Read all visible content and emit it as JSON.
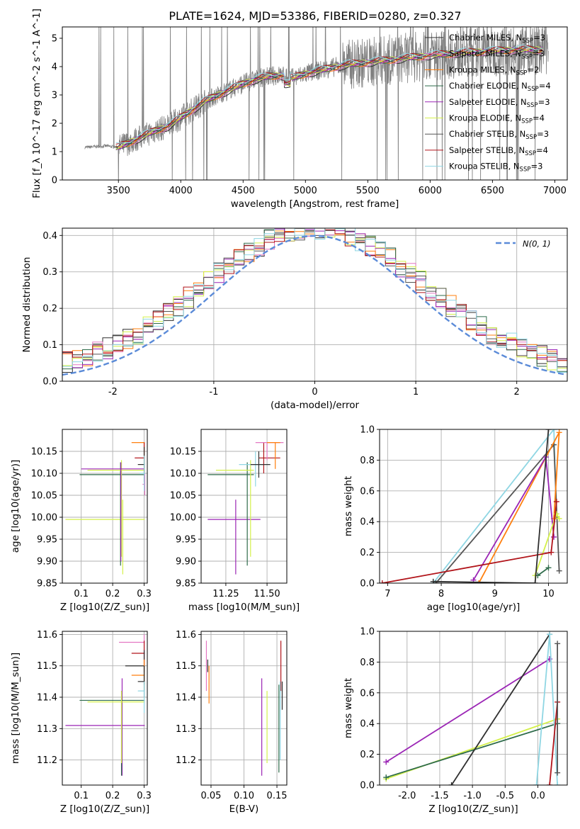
{
  "figure": {
    "title": "PLATE=1624, MJD=53386, FIBERID=0280, z=0.327"
  },
  "colors": {
    "data": "#808080",
    "fit": [
      "#2f2f2f",
      "#e377c2",
      "#ff7f0e",
      "#2e6b4a",
      "#9b25b5",
      "#d4f04a",
      "#555555",
      "#b1141a",
      "#8fd6e3"
    ],
    "gauss": "#5b8bd8",
    "grid": "#b0b0b0"
  },
  "chart_data": [
    {
      "id": "spectrum",
      "type": "line",
      "xlabel": "wavelength [Angstrom, rest frame]",
      "ylabel": "Flux [f_λ 10^-17 erg cm^-2 s^-1 A^-1]",
      "xlim": [
        3050,
        7100
      ],
      "ylim": [
        0,
        5.4
      ],
      "xticks": [
        3500,
        4000,
        4500,
        5000,
        5500,
        6000,
        6500,
        7000
      ],
      "yticks": [
        0,
        1,
        2,
        3,
        4,
        5
      ],
      "grid": false,
      "legend_placement": "top-right",
      "legend": [
        {
          "label": "Chabrier MILES, N",
          "sub": "SSP",
          "suffix": "=3"
        },
        {
          "label": "Salpeter MILES, N",
          "sub": "SSP",
          "suffix": "=3"
        },
        {
          "label": "Kroupa MILES, N",
          "sub": "SSP",
          "suffix": "=2"
        },
        {
          "label": "Chabrier ELODIE, N",
          "sub": "SSP",
          "suffix": "=4"
        },
        {
          "label": "Salpeter ELODIE, N",
          "sub": "SSP",
          "suffix": "=3"
        },
        {
          "label": "Kroupa ELODIE, N",
          "sub": "SSP",
          "suffix": "=4"
        },
        {
          "label": "Chabrier STELIB, N",
          "sub": "SSP",
          "suffix": "=3"
        },
        {
          "label": "Salpeter STELIB, N",
          "sub": "SSP",
          "suffix": "=4"
        },
        {
          "label": "Kroupa STELIB, N",
          "sub": "SSP",
          "suffix": "=3"
        }
      ],
      "continuum": [
        [
          3230,
          1.15
        ],
        [
          3400,
          1.2
        ],
        [
          3500,
          1.15
        ],
        [
          3600,
          1.35
        ],
        [
          3700,
          1.55
        ],
        [
          3800,
          1.75
        ],
        [
          3900,
          1.9
        ],
        [
          4000,
          2.2
        ],
        [
          4100,
          2.5
        ],
        [
          4200,
          2.8
        ],
        [
          4300,
          3.0
        ],
        [
          4400,
          3.2
        ],
        [
          4500,
          3.4
        ],
        [
          4600,
          3.55
        ],
        [
          4700,
          3.65
        ],
        [
          4800,
          3.7
        ],
        [
          4900,
          3.6
        ],
        [
          5000,
          3.75
        ],
        [
          5100,
          3.85
        ],
        [
          5200,
          3.95
        ],
        [
          5300,
          4.05
        ],
        [
          5500,
          4.15
        ],
        [
          5700,
          4.25
        ],
        [
          6000,
          4.4
        ],
        [
          6300,
          4.5
        ],
        [
          6500,
          4.55
        ],
        [
          6700,
          4.6
        ],
        [
          6900,
          4.6
        ]
      ]
    },
    {
      "id": "residuals",
      "type": "line",
      "xlabel": "(data-model)/error",
      "ylabel": "Normed distribution",
      "xlim": [
        -2.5,
        2.5
      ],
      "ylim": [
        0,
        0.42
      ],
      "xticks": [
        -2,
        -1,
        0,
        1,
        2
      ],
      "yticks": [
        0.0,
        0.1,
        0.2,
        0.3,
        0.4
      ],
      "grid": true,
      "legend_placement": "top-right",
      "gauss_label": "N(0, 1)",
      "bin_width": 0.1
    },
    {
      "id": "age_vs_Z",
      "type": "scatter",
      "xlabel": "Z [log10(Z/Z_sun)]",
      "ylabel": "age  [log10(age/yr)]",
      "xlim": [
        0.04,
        0.31
      ],
      "ylim": [
        9.85,
        10.2
      ],
      "xticks": [
        0.1,
        0.2,
        0.3
      ],
      "yticks": [
        9.85,
        9.9,
        9.95,
        10.0,
        10.05,
        10.1,
        10.15
      ],
      "grid": true,
      "points": [
        {
          "x": 0.232,
          "y": 9.995,
          "xe": [
            0.05,
            0.302
          ],
          "ye": [
            9.87,
            10.04
          ],
          "c": 5
        },
        {
          "x": 0.225,
          "y": 10.097,
          "xe": [
            0.095,
            0.302
          ],
          "ye": [
            9.89,
            10.125
          ],
          "c": 3
        },
        {
          "x": 0.228,
          "y": 10.107,
          "xe": [
            0.12,
            0.302
          ],
          "ye": [
            9.91,
            10.13
          ],
          "c": 5
        },
        {
          "x": 0.226,
          "y": 10.11,
          "xe": [
            0.1,
            0.3
          ],
          "ye": [
            9.9,
            10.125
          ],
          "c": 4
        },
        {
          "x": 0.3,
          "y": 10.17,
          "xe": [
            0.26,
            0.302
          ],
          "ye": [
            10.1,
            10.17
          ],
          "c": 2
        },
        {
          "x": 0.3,
          "y": 10.135,
          "xe": [
            0.27,
            0.302
          ],
          "ye": [
            10.08,
            10.17
          ],
          "c": 7
        },
        {
          "x": 0.3,
          "y": 10.12,
          "xe": [
            0.28,
            0.302
          ],
          "ye": [
            10.08,
            10.16
          ],
          "c": 0
        },
        {
          "x": 0.302,
          "y": 10.075,
          "xe": [
            0.295,
            0.303
          ],
          "ye": [
            10.05,
            10.1
          ],
          "c": 1
        },
        {
          "x": 0.3,
          "y": 10.1,
          "xe": [
            0.285,
            0.303
          ],
          "ye": [
            10.06,
            10.14
          ],
          "c": 8
        }
      ]
    },
    {
      "id": "age_vs_mass",
      "type": "scatter",
      "xlabel": "mass [log10(M/M_sun)]",
      "ylabel": "",
      "xlim": [
        11.1,
        11.62
      ],
      "ylim": [
        9.85,
        10.2
      ],
      "xticks": [
        11.25,
        11.5
      ],
      "yticks": [
        9.85,
        9.9,
        9.95,
        10.0,
        10.05,
        10.1,
        10.15
      ],
      "grid": true,
      "points": [
        {
          "x": 11.31,
          "y": 9.995,
          "xe": [
            11.14,
            11.46
          ],
          "ye": [
            9.87,
            10.04
          ],
          "c": 4
        },
        {
          "x": 11.38,
          "y": 10.097,
          "xe": [
            11.14,
            11.42
          ],
          "ye": [
            9.89,
            10.125
          ],
          "c": 3
        },
        {
          "x": 11.4,
          "y": 10.107,
          "xe": [
            11.19,
            11.42
          ],
          "ye": [
            9.91,
            10.13
          ],
          "c": 5
        },
        {
          "x": 11.43,
          "y": 10.12,
          "xe": [
            11.33,
            11.48
          ],
          "ye": [
            10.07,
            10.15
          ],
          "c": 8
        },
        {
          "x": 11.48,
          "y": 10.135,
          "xe": [
            11.45,
            11.58
          ],
          "ye": [
            10.1,
            10.17
          ],
          "c": 7
        },
        {
          "x": 11.5,
          "y": 10.17,
          "xe": [
            11.43,
            11.6
          ],
          "ye": [
            10.13,
            10.17
          ],
          "c": 1
        },
        {
          "x": 11.45,
          "y": 10.12,
          "xe": [
            11.4,
            11.52
          ],
          "ye": [
            10.09,
            10.15
          ],
          "c": 0
        },
        {
          "x": 11.55,
          "y": 10.17,
          "xe": [
            11.5,
            11.58
          ],
          "ye": [
            10.11,
            10.17
          ],
          "c": 2
        }
      ]
    },
    {
      "id": "weight_vs_age",
      "type": "line",
      "xlabel": "age  [log10(age/yr)]",
      "ylabel": "mass weight",
      "xlim": [
        6.85,
        10.35
      ],
      "ylim": [
        0,
        1.0
      ],
      "xticks": [
        7,
        8,
        9,
        10
      ],
      "yticks": [
        0.0,
        0.2,
        0.4,
        0.6,
        0.8,
        1.0
      ],
      "grid": true,
      "series": [
        {
          "c": 8,
          "x": [
            7.85,
            10.1,
            10.15
          ],
          "y": [
            0.0,
            1.0,
            0.45
          ]
        },
        {
          "c": 6,
          "x": [
            7.9,
            10.1,
            10.2
          ],
          "y": [
            0.0,
            0.9,
            0.08
          ]
        },
        {
          "c": 2,
          "x": [
            8.7,
            10.2,
            10.1
          ],
          "y": [
            0.0,
            0.98,
            0.42
          ]
        },
        {
          "c": 4,
          "x": [
            8.6,
            9.95,
            10.1
          ],
          "y": [
            0.02,
            0.82,
            0.3
          ]
        },
        {
          "c": 5,
          "x": [
            9.75,
            10.15,
            10.2
          ],
          "y": [
            0.05,
            0.45,
            0.42
          ]
        },
        {
          "c": 7,
          "x": [
            6.9,
            10.05,
            10.15
          ],
          "y": [
            0.0,
            0.2,
            0.53
          ]
        },
        {
          "c": 3,
          "x": [
            9.8,
            10.0
          ],
          "y": [
            0.05,
            0.1
          ]
        },
        {
          "c": 9,
          "x": [
            7.85,
            9.75,
            10.0
          ],
          "y": [
            0.01,
            0.0,
            1.0
          ]
        }
      ]
    },
    {
      "id": "mass_vs_Z",
      "type": "scatter",
      "xlabel": "Z [log10(Z/Z_sun)]",
      "ylabel": "mass [log10(M/M_sun)]",
      "xlim": [
        0.04,
        0.31
      ],
      "ylim": [
        11.12,
        11.61
      ],
      "xticks": [
        0.1,
        0.2,
        0.3
      ],
      "yticks": [
        11.2,
        11.3,
        11.4,
        11.5,
        11.6
      ],
      "grid": true,
      "points": [
        {
          "x": 0.23,
          "y": 11.31,
          "xe": [
            0.05,
            0.302
          ],
          "ye": [
            11.15,
            11.46
          ],
          "c": 4
        },
        {
          "x": 0.228,
          "y": 11.39,
          "xe": [
            0.095,
            0.302
          ],
          "ye": [
            11.15,
            11.42
          ],
          "c": 3
        },
        {
          "x": 0.228,
          "y": 11.385,
          "xe": [
            0.12,
            0.302
          ],
          "ye": [
            11.19,
            11.42
          ],
          "c": 5
        },
        {
          "x": 0.3,
          "y": 11.575,
          "xe": [
            0.22,
            0.302
          ],
          "ye": [
            11.5,
            11.6
          ],
          "c": 1
        },
        {
          "x": 0.3,
          "y": 11.54,
          "xe": [
            0.26,
            0.302
          ],
          "ye": [
            11.48,
            11.58
          ],
          "c": 7
        },
        {
          "x": 0.3,
          "y": 11.5,
          "xe": [
            0.24,
            0.302
          ],
          "ye": [
            11.44,
            11.55
          ],
          "c": 9
        },
        {
          "x": 0.3,
          "y": 11.47,
          "xe": [
            0.26,
            0.302
          ],
          "ye": [
            11.42,
            11.52
          ],
          "c": 2
        },
        {
          "x": 0.3,
          "y": 11.45,
          "xe": [
            0.28,
            0.302
          ],
          "ye": [
            11.4,
            11.5
          ],
          "c": 0
        },
        {
          "x": 0.3,
          "y": 11.42,
          "xe": [
            0.28,
            0.302
          ],
          "ye": [
            11.35,
            11.45
          ],
          "c": 8
        }
      ]
    },
    {
      "id": "mass_vs_ebv",
      "type": "scatter",
      "xlabel": "E(B-V)",
      "ylabel": "",
      "xlim": [
        0.035,
        0.165
      ],
      "ylim": [
        11.12,
        11.61
      ],
      "xticks": [
        0.05,
        0.1,
        0.15
      ],
      "yticks": [
        11.2,
        11.3,
        11.4,
        11.5,
        11.6
      ],
      "grid": true,
      "points": [
        {
          "x": 0.043,
          "y": 11.5,
          "ye": [
            11.42,
            11.58
          ],
          "c": 1
        },
        {
          "x": 0.047,
          "y": 11.5,
          "ye": [
            11.38,
            11.5
          ],
          "c": 2
        },
        {
          "x": 0.045,
          "y": 11.5,
          "ye": [
            11.48,
            11.52
          ],
          "c": 9
        },
        {
          "x": 0.127,
          "y": 11.31,
          "ye": [
            11.15,
            11.46
          ],
          "c": 4
        },
        {
          "x": 0.135,
          "y": 11.3,
          "ye": [
            11.19,
            11.42
          ],
          "c": 5
        },
        {
          "x": 0.153,
          "y": 11.4,
          "ye": [
            11.16,
            11.44
          ],
          "c": 3
        },
        {
          "x": 0.156,
          "y": 11.5,
          "ye": [
            11.42,
            11.58
          ],
          "c": 7
        },
        {
          "x": 0.158,
          "y": 11.4,
          "ye": [
            11.36,
            11.45
          ],
          "c": 0
        },
        {
          "x": 0.155,
          "y": 11.4,
          "ye": [
            11.2,
            11.45
          ],
          "c": 8
        }
      ]
    },
    {
      "id": "weight_vs_Z",
      "type": "line",
      "xlabel": "Z [log10(Z/Z_sun)]",
      "ylabel": "mass weight",
      "xlim": [
        -2.42,
        0.45
      ],
      "ylim": [
        0,
        1.0
      ],
      "xticks": [
        -2.0,
        -1.5,
        -1.0,
        -0.5,
        0.0
      ],
      "yticks": [
        0.0,
        0.2,
        0.4,
        0.6,
        0.8,
        1.0
      ],
      "grid": true,
      "series": [
        {
          "c": 4,
          "x": [
            -2.32,
            0.18
          ],
          "y": [
            0.15,
            0.82
          ]
        },
        {
          "c": 5,
          "x": [
            -2.32,
            0.3
          ],
          "y": [
            0.04,
            0.43
          ]
        },
        {
          "c": 3,
          "x": [
            -2.32,
            0.3
          ],
          "y": [
            0.05,
            0.4
          ]
        },
        {
          "c": 9,
          "x": [
            -1.32,
            0.18
          ],
          "y": [
            0.0,
            0.98
          ]
        },
        {
          "c": 8,
          "x": [
            -0.02,
            0.18,
            0.3
          ],
          "y": [
            0.0,
            0.98,
            0.0
          ]
        },
        {
          "c": 7,
          "x": [
            0.18,
            0.3
          ],
          "y": [
            0.0,
            0.54
          ]
        },
        {
          "c": 6,
          "x": [
            0.3,
            0.3
          ],
          "y": [
            0.08,
            0.92
          ]
        }
      ]
    }
  ]
}
